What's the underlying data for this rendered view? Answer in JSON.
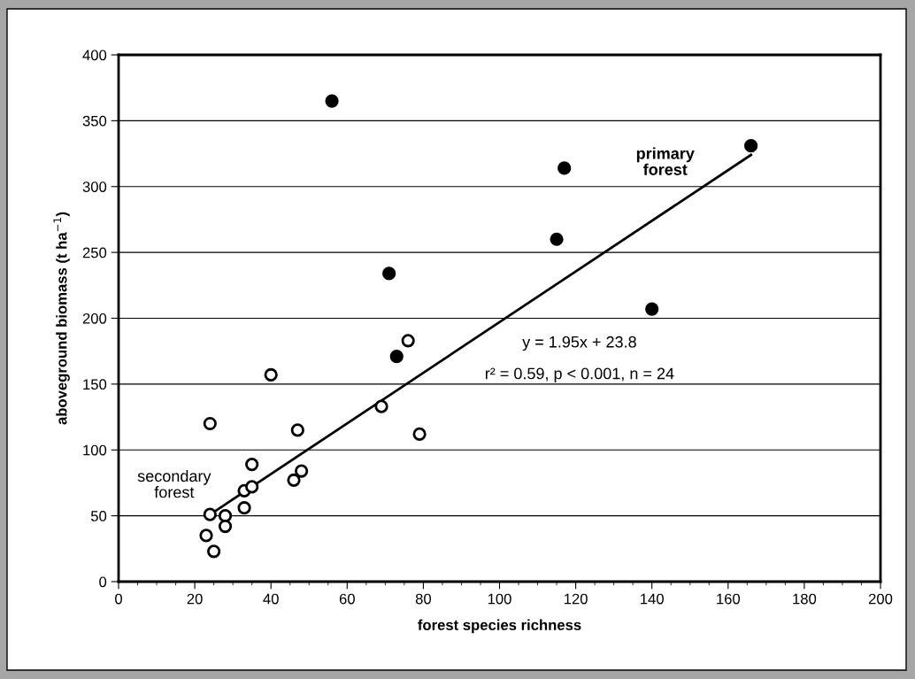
{
  "chart_data": {
    "type": "scatter",
    "xlabel": "forest species richness",
    "ylabel": "aboveground biomass (t ha$^{−1}$)",
    "xlim": [
      0,
      200
    ],
    "xticks": [
      0,
      20,
      40,
      60,
      80,
      100,
      120,
      140,
      160,
      180,
      200
    ],
    "ylim": [
      0,
      400
    ],
    "yticks": [
      0,
      50,
      100,
      150,
      200,
      250,
      300,
      350,
      400
    ],
    "grid": "y",
    "legend": false,
    "marker": "circle",
    "series": [
      {
        "color": "#ffffff",
        "x": [
          24,
          40,
          47,
          69,
          79,
          76,
          35,
          33,
          35,
          33,
          46,
          48,
          24,
          28,
          28,
          23,
          25
        ],
        "values": [
          120,
          157,
          115,
          133,
          112,
          183,
          89,
          69,
          72,
          56,
          77,
          84,
          51,
          50,
          42,
          35,
          23
        ]
      },
      {
        "color": "#000000",
        "x": [
          56,
          166,
          117,
          115,
          71,
          140,
          73
        ],
        "values": [
          365,
          331,
          314,
          260,
          234,
          207,
          171
        ]
      },
      {
        "type": "line",
        "color": "#000000",
        "marker": "none",
        "line_style": "solid",
        "x": [
          23,
          166
        ],
        "values": [
          49,
          324
        ]
      }
    ],
    "annotations": [
      "secondary forest",
      "primary forest",
      "y = 1.95x + 23.8",
      "r² = 0.59, p < 0.001, n = 24"
    ]
  }
}
